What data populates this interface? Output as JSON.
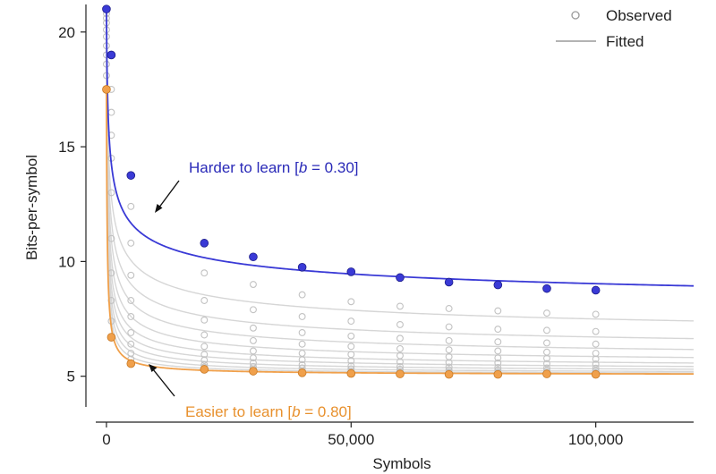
{
  "chart_data": {
    "type": "scatter",
    "title": "",
    "xlabel": "Symbols",
    "ylabel": "Bits-per-symbol",
    "xlim": [
      -2000,
      120000
    ],
    "ylim": [
      3,
      21.2
    ],
    "xticks": [
      0,
      50000,
      100000
    ],
    "xtick_labels": [
      "0",
      "50,000",
      "100,000"
    ],
    "yticks": [
      5,
      10,
      15,
      20
    ],
    "ytick_labels": [
      "5",
      "10",
      "15",
      "20"
    ],
    "grid": false,
    "legend": {
      "position": "top-right",
      "entries": [
        {
          "label": "Observed",
          "marker": "open-circle",
          "color": "#9a9a9a"
        },
        {
          "label": "Fitted",
          "marker": "line",
          "color": "#9a9a9a"
        }
      ]
    },
    "x": [
      0,
      1000,
      5000,
      20000,
      30000,
      40000,
      50000,
      60000,
      70000,
      80000,
      90000,
      100000
    ],
    "highlight_series": [
      {
        "role": "hard",
        "color": "#3a3ad6",
        "fit_b": 0.3,
        "fit_asymptote": 7.2,
        "values": [
          21.0,
          19.0,
          13.75,
          10.8,
          10.2,
          9.75,
          9.55,
          9.3,
          9.1,
          8.98,
          8.82,
          8.75
        ]
      },
      {
        "role": "easy",
        "color": "#f0a04b",
        "fit_b": 0.8,
        "fit_asymptote": 5.05,
        "values": [
          17.5,
          6.7,
          5.55,
          5.3,
          5.22,
          5.15,
          5.12,
          5.1,
          5.08,
          5.08,
          5.1,
          5.08
        ]
      }
    ],
    "background_series": [
      {
        "fit_b": 0.35,
        "fit_asymptote": 6.1,
        "values": [
          20.8,
          17.5,
          12.4,
          9.5,
          9.0,
          8.55,
          8.25,
          8.05,
          7.95,
          7.85,
          7.75,
          7.7
        ]
      },
      {
        "fit_b": 0.4,
        "fit_asymptote": 5.7,
        "values": [
          20.6,
          16.5,
          10.8,
          8.3,
          7.9,
          7.6,
          7.4,
          7.25,
          7.15,
          7.05,
          7.0,
          6.95
        ]
      },
      {
        "fit_b": 0.45,
        "fit_asymptote": 5.5,
        "values": [
          20.4,
          15.5,
          9.4,
          7.45,
          7.1,
          6.9,
          6.75,
          6.65,
          6.55,
          6.5,
          6.45,
          6.4
        ]
      },
      {
        "fit_b": 0.5,
        "fit_asymptote": 5.35,
        "values": [
          20.1,
          14.5,
          8.3,
          6.8,
          6.55,
          6.4,
          6.3,
          6.2,
          6.15,
          6.1,
          6.05,
          6.0
        ]
      },
      {
        "fit_b": 0.55,
        "fit_asymptote": 5.25,
        "values": [
          19.8,
          13.0,
          7.6,
          6.3,
          6.1,
          6.0,
          5.95,
          5.9,
          5.85,
          5.8,
          5.78,
          5.75
        ]
      },
      {
        "fit_b": 0.6,
        "fit_asymptote": 5.2,
        "values": [
          19.4,
          11.0,
          6.9,
          5.95,
          5.8,
          5.72,
          5.67,
          5.63,
          5.6,
          5.58,
          5.55,
          5.53
        ]
      },
      {
        "fit_b": 0.65,
        "fit_asymptote": 5.15,
        "values": [
          19.0,
          9.5,
          6.4,
          5.7,
          5.58,
          5.5,
          5.45,
          5.42,
          5.4,
          5.38,
          5.36,
          5.35
        ]
      },
      {
        "fit_b": 0.7,
        "fit_asymptote": 5.1,
        "values": [
          18.6,
          8.3,
          6.0,
          5.5,
          5.42,
          5.36,
          5.32,
          5.3,
          5.28,
          5.27,
          5.26,
          5.25
        ]
      },
      {
        "fit_b": 0.75,
        "fit_asymptote": 5.07,
        "values": [
          18.1,
          7.4,
          5.75,
          5.4,
          5.32,
          5.25,
          5.22,
          5.2,
          5.18,
          5.17,
          5.16,
          5.15
        ]
      }
    ],
    "annotations": [
      {
        "text_prefix": "Harder to learn [",
        "text_var": "b",
        "text_suffix": " = 0.30]",
        "color": "#2a2ab8",
        "arrow_to": [
          10000,
          12.3
        ]
      },
      {
        "text_prefix": "Easier to learn [",
        "text_var": "b",
        "text_suffix": " = 0.80]",
        "color": "#e8912e",
        "arrow_to": [
          9000,
          5.1
        ]
      }
    ]
  }
}
